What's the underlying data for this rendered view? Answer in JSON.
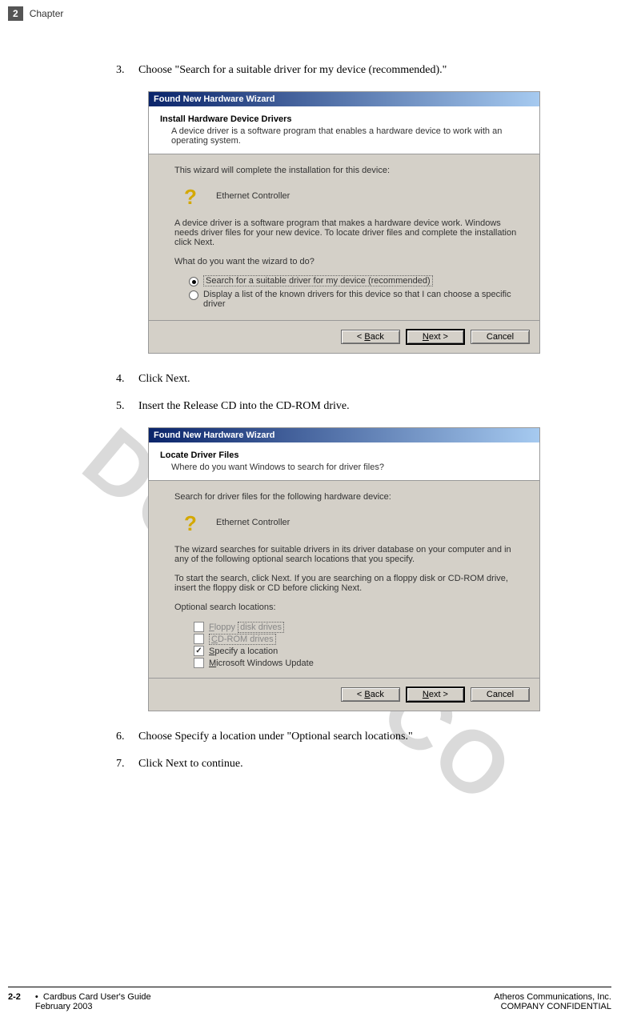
{
  "header": {
    "chapter_num": "2",
    "chapter_label": "Chapter"
  },
  "watermark": "DO NOT CO",
  "steps": {
    "s3": {
      "num": "3.",
      "text": "Choose \"Search for a suitable driver for my device (recommended).\""
    },
    "s4": {
      "num": "4.",
      "text": "Click Next."
    },
    "s5": {
      "num": "5.",
      "text": "Insert the Release CD into the CD-ROM drive."
    },
    "s6": {
      "num": "6.",
      "text": "Choose Specify a location under \"Optional search locations.\""
    },
    "s7": {
      "num": "7.",
      "text": "Click Next to continue."
    }
  },
  "dialog1": {
    "title": "Found New Hardware Wizard",
    "heading": "Install Hardware Device Drivers",
    "subheading": "A device driver is a software program that enables a hardware device to work with an operating system.",
    "intro": "This wizard will complete the installation for this device:",
    "device": "Ethernet Controller",
    "desc": "A device driver is a software program that makes a hardware device work. Windows needs driver files for your new device. To locate driver files and complete the installation click Next.",
    "question": "What do you want the wizard to do?",
    "radio1": "Search for a suitable driver for my device (recommended)",
    "radio2": "Display a list of the known drivers for this device so that I can choose a specific driver",
    "back": "< Back",
    "next": "Next >",
    "cancel": "Cancel"
  },
  "dialog2": {
    "title": "Found New Hardware Wizard",
    "heading": "Locate Driver Files",
    "subheading": "Where do you want Windows to search for driver files?",
    "intro": "Search for driver files for the following hardware device:",
    "device": "Ethernet Controller",
    "desc1": "The wizard searches for suitable drivers in its driver database on your computer and in any of the following optional search locations that you specify.",
    "desc2": "To start the search, click Next. If you are searching on a floppy disk or CD-ROM drive, insert the floppy disk or CD before clicking Next.",
    "opt_label": "Optional search locations:",
    "cb1": "Floppy disk drives",
    "cb2": "CD-ROM drives",
    "cb3": "Specify a location",
    "cb4": "Microsoft Windows Update",
    "back": "< Back",
    "next": "Next >",
    "cancel": "Cancel"
  },
  "footer": {
    "page_num": "2-2",
    "bullet": "•",
    "guide": "Cardbus Card User's Guide",
    "date": "February 2003",
    "company": "Atheros Communications, Inc.",
    "confidential": "COMPANY CONFIDENTIAL"
  }
}
